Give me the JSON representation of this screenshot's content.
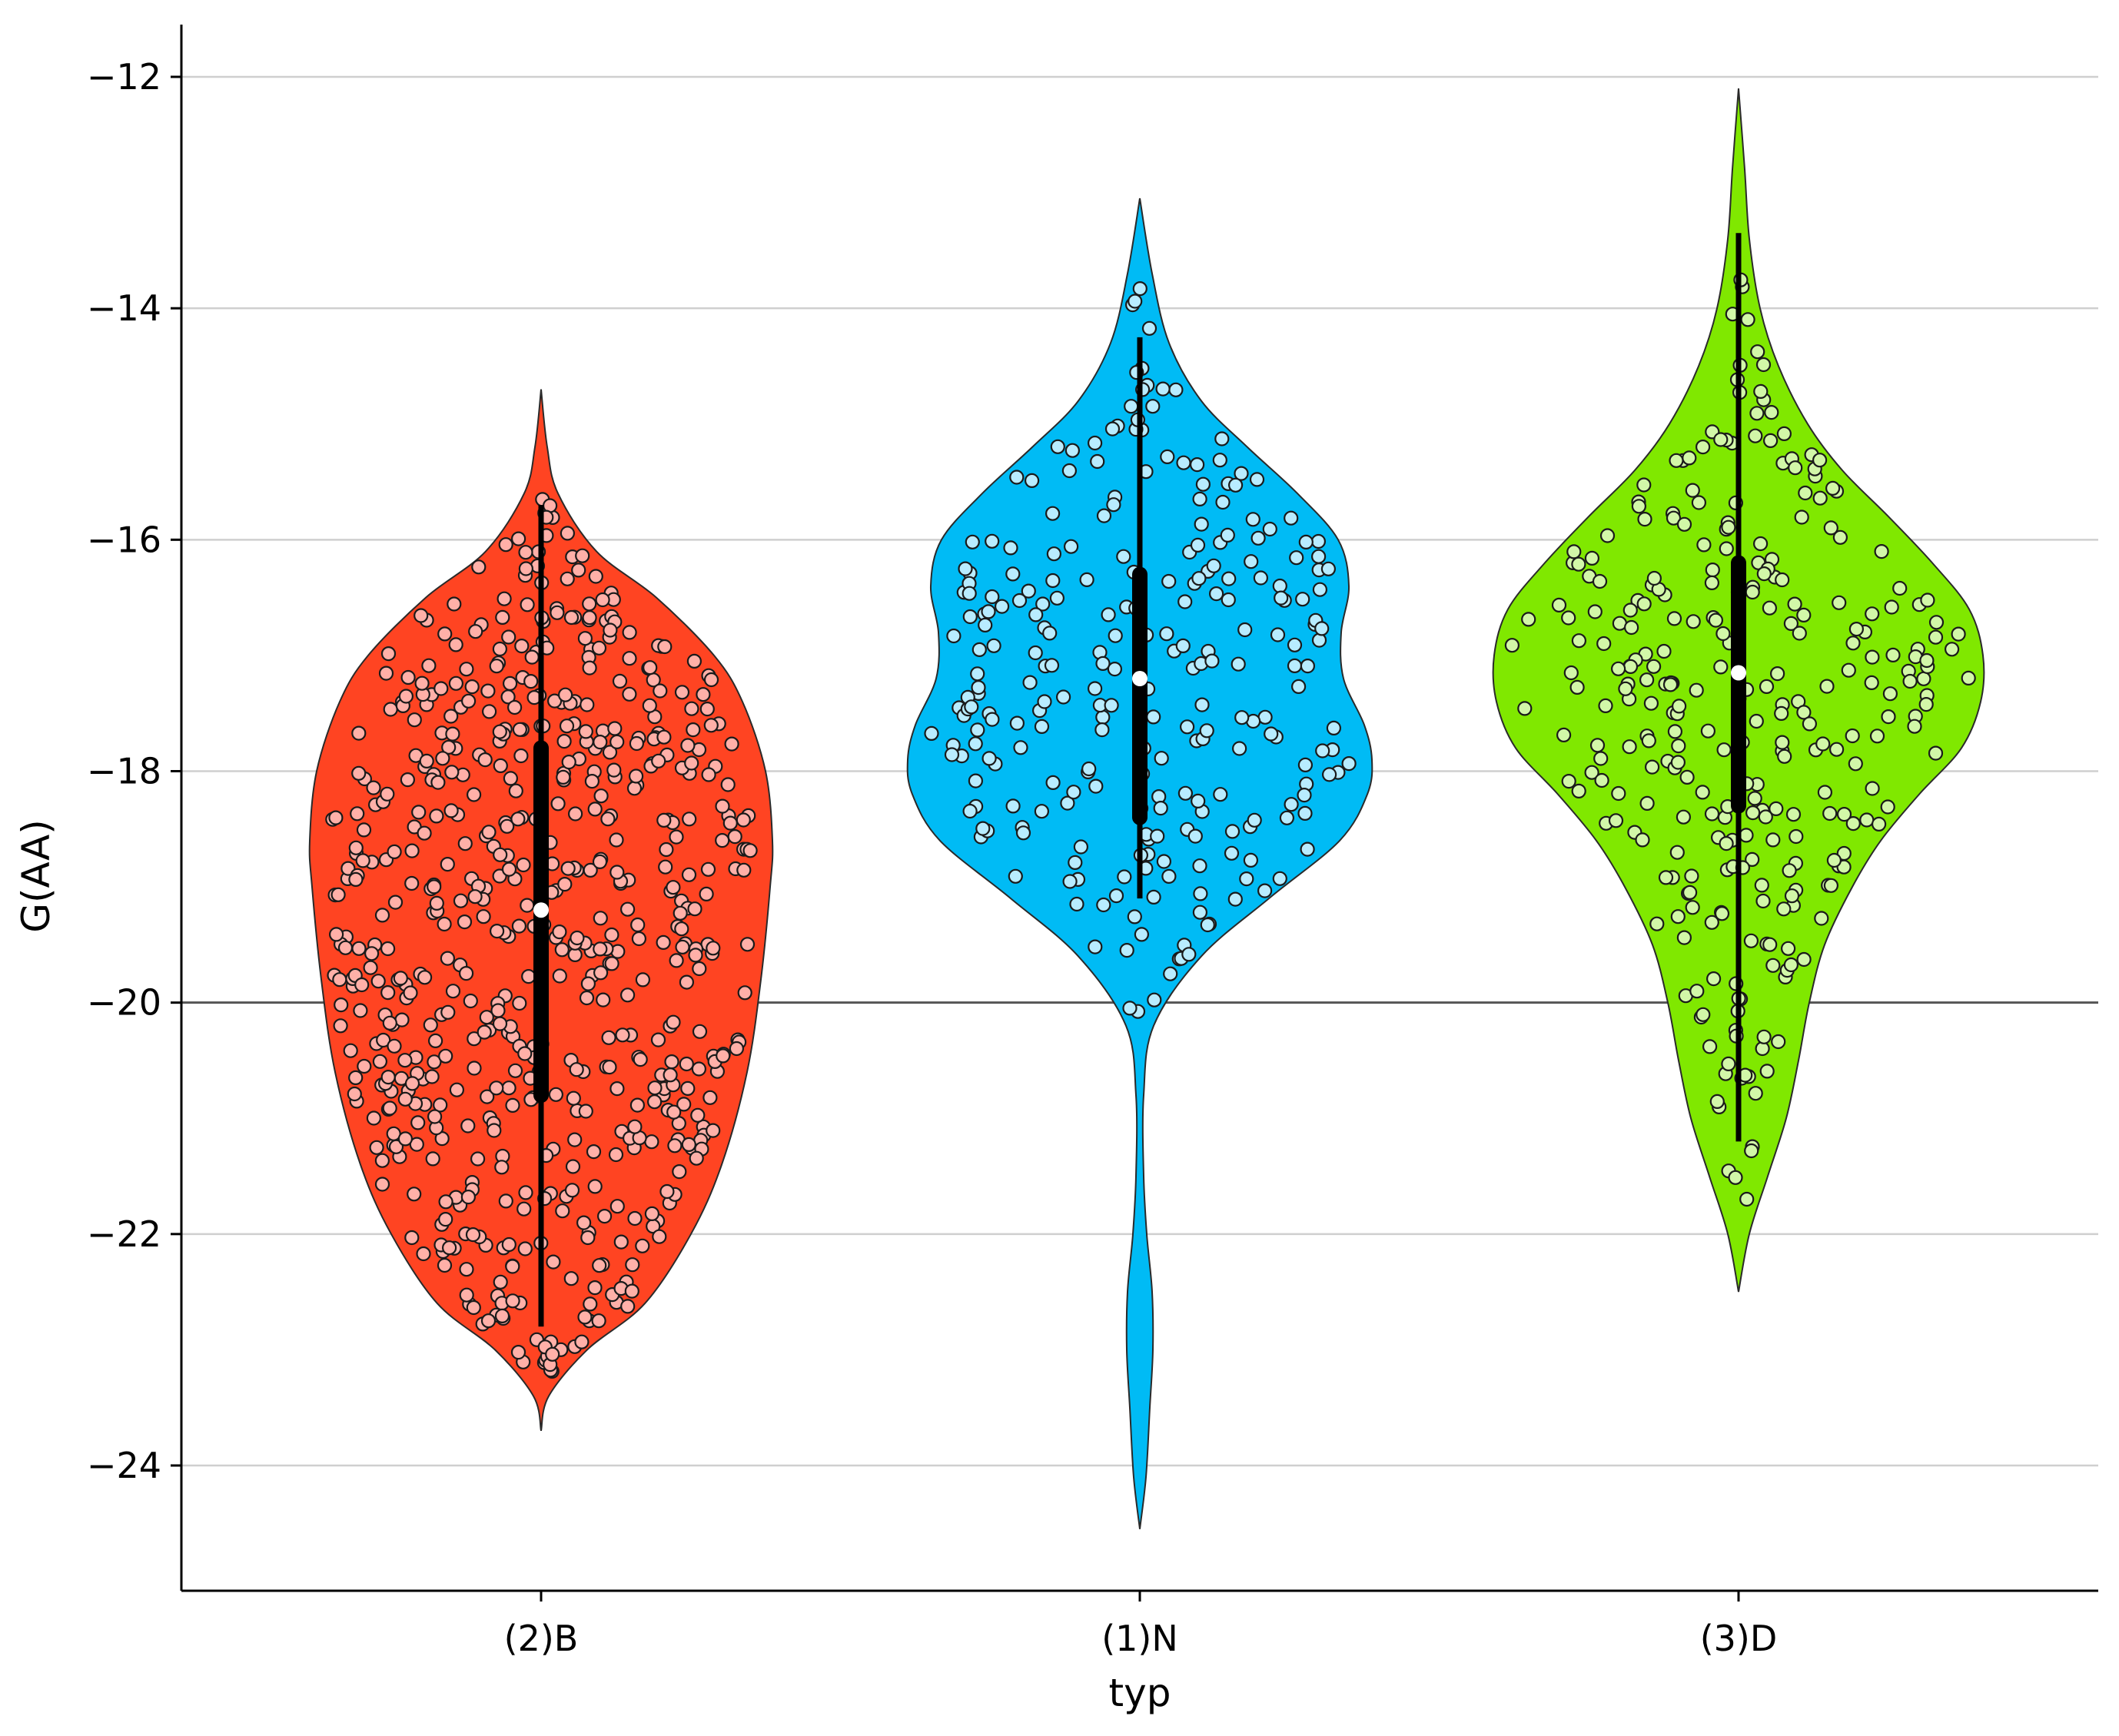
{
  "chart_data": {
    "type": "violin",
    "xlabel": "typ",
    "ylabel": "G(AA)",
    "ylim": [
      -25.1,
      -11.5
    ],
    "yticks": [
      -12,
      -14,
      -16,
      -18,
      -20,
      -22,
      -24
    ],
    "ytick_labels": [
      "−12",
      "−14",
      "−16",
      "−18",
      "−20",
      "−22",
      "−24"
    ],
    "reference_line": -20,
    "grid": "horizontal",
    "categories": [
      "(2)B",
      "(1)N",
      "(3)D"
    ],
    "series": [
      {
        "category": "(2)B",
        "color": "#ff4422",
        "point_color": "#ffb0a8",
        "n_points": 640,
        "range": [
          -23.7,
          -14.7
        ],
        "whisker": [
          -22.8,
          -15.7
        ],
        "box": [
          -20.8,
          -17.8
        ],
        "median": -19.2,
        "profile": [
          [
            -23.7,
            0
          ],
          [
            -23.4,
            10
          ],
          [
            -23.0,
            60
          ],
          [
            -22.6,
            135
          ],
          [
            -22.0,
            195
          ],
          [
            -21.4,
            235
          ],
          [
            -20.6,
            268
          ],
          [
            -19.8,
            286
          ],
          [
            -19.0,
            298
          ],
          [
            -18.6,
            301
          ],
          [
            -18.0,
            292
          ],
          [
            -17.4,
            262
          ],
          [
            -17.0,
            225
          ],
          [
            -16.5,
            150
          ],
          [
            -16.1,
            72
          ],
          [
            -15.6,
            22
          ],
          [
            -15.2,
            8
          ],
          [
            -14.7,
            0
          ]
        ]
      },
      {
        "category": "(1)N",
        "color": "#00bbf5",
        "point_color": "#b8ecff",
        "n_points": 260,
        "range": [
          -24.55,
          -13.05
        ],
        "whisker": [
          -19.1,
          -14.25
        ],
        "box": [
          -18.4,
          -16.3
        ],
        "median": -17.2,
        "profile": [
          [
            -24.55,
            0
          ],
          [
            -24.1,
            8
          ],
          [
            -23.5,
            13
          ],
          [
            -23.0,
            17
          ],
          [
            -22.5,
            16
          ],
          [
            -22.0,
            9
          ],
          [
            -21.5,
            5
          ],
          [
            -20.8,
            5
          ],
          [
            -20.2,
            18
          ],
          [
            -19.6,
            80
          ],
          [
            -19.1,
            168
          ],
          [
            -18.6,
            260
          ],
          [
            -18.2,
            296
          ],
          [
            -17.9,
            302
          ],
          [
            -17.6,
            292
          ],
          [
            -17.2,
            265
          ],
          [
            -16.8,
            262
          ],
          [
            -16.4,
            272
          ],
          [
            -16.0,
            258
          ],
          [
            -15.6,
            205
          ],
          [
            -15.2,
            140
          ],
          [
            -14.8,
            80
          ],
          [
            -14.3,
            38
          ],
          [
            -13.7,
            16
          ],
          [
            -13.05,
            0
          ]
        ]
      },
      {
        "category": "(3)D",
        "color": "#80e800",
        "point_color": "#d2f7a8",
        "n_points": 300,
        "range": [
          -22.5,
          -12.1
        ],
        "whisker": [
          -21.2,
          -13.35
        ],
        "box": [
          -18.3,
          -16.2
        ],
        "median": -17.15,
        "profile": [
          [
            -22.5,
            0
          ],
          [
            -22.0,
            14
          ],
          [
            -21.5,
            38
          ],
          [
            -21.0,
            62
          ],
          [
            -20.5,
            78
          ],
          [
            -20.0,
            92
          ],
          [
            -19.5,
            112
          ],
          [
            -19.0,
            148
          ],
          [
            -18.6,
            185
          ],
          [
            -18.2,
            235
          ],
          [
            -17.8,
            290
          ],
          [
            -17.4,
            315
          ],
          [
            -17.0,
            318
          ],
          [
            -16.6,
            300
          ],
          [
            -16.2,
            252
          ],
          [
            -15.8,
            195
          ],
          [
            -15.4,
            135
          ],
          [
            -15.0,
            90
          ],
          [
            -14.5,
            52
          ],
          [
            -14.0,
            28
          ],
          [
            -13.4,
            14
          ],
          [
            -12.8,
            8
          ],
          [
            -12.1,
            0
          ]
        ]
      }
    ]
  }
}
